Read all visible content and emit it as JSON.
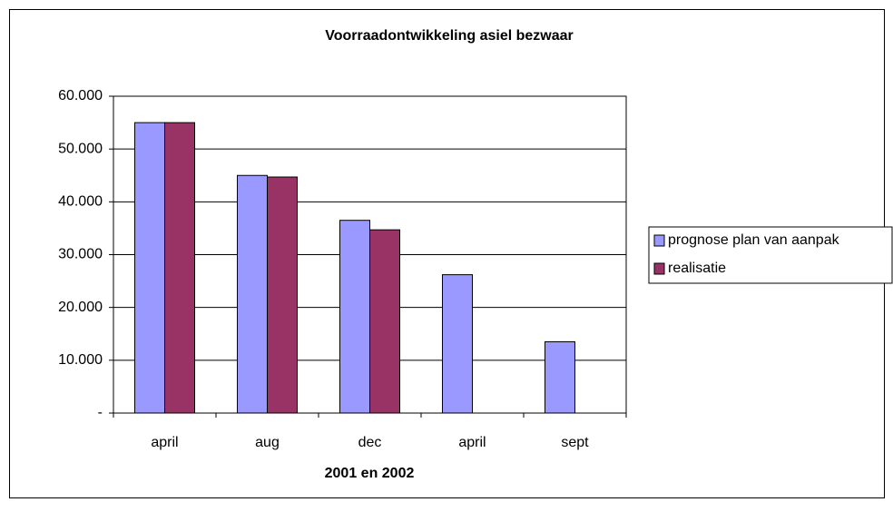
{
  "chart_data": {
    "type": "bar",
    "title": "Voorraadontwikkeling asiel bezwaar",
    "x_label": "2001 en 2002",
    "categories": [
      "april",
      "aug",
      "dec",
      "april",
      "sept"
    ],
    "series": [
      {
        "name": "prognose plan van aanpak",
        "color": "#9999ff",
        "values": [
          55000,
          45000,
          36500,
          26200,
          13500
        ]
      },
      {
        "name": "realisatie",
        "color": "#993366",
        "values": [
          55000,
          44700,
          34700,
          null,
          null
        ]
      }
    ],
    "ylim": [
      0,
      60000
    ],
    "yticks": [
      {
        "value": 0,
        "label": "-"
      },
      {
        "value": 10000,
        "label": "10.000"
      },
      {
        "value": 20000,
        "label": "20.000"
      },
      {
        "value": 30000,
        "label": "30.000"
      },
      {
        "value": 40000,
        "label": "40.000"
      },
      {
        "value": 50000,
        "label": "50.000"
      },
      {
        "value": 60000,
        "label": "60.000"
      }
    ],
    "grid": true,
    "legend": "right"
  }
}
